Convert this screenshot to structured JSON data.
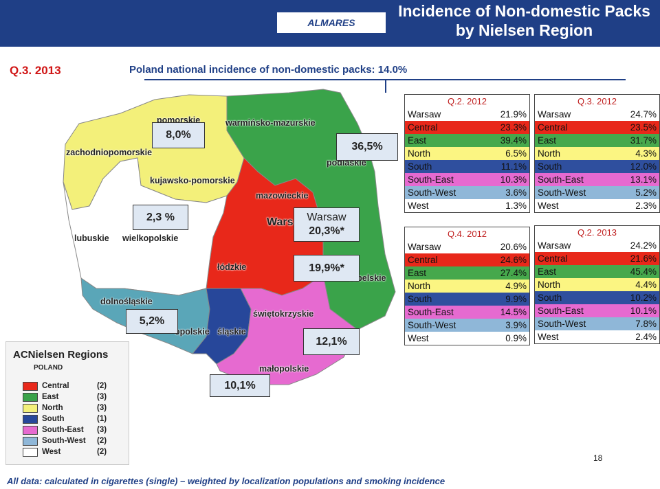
{
  "header": {
    "logo": "ALMARES",
    "title_line1": "Incidence of Non-domestic Packs",
    "title_line2": "by Nielsen Region"
  },
  "quarter_label": "Q.3. 2013",
  "subtitle": "Poland national incidence of non-domestic packs: 14.0%",
  "map": {
    "voivodeships": [
      "pomorskie",
      "warmińsko-mazurskie",
      "zachodniopomorskie",
      "podlaskie",
      "kujawsko-pomorskie",
      "mazowieckie",
      "lubuskie",
      "wielkopolskie",
      "Wars",
      "łódzkie",
      "lubelskie",
      "dolnośląskie",
      "świętokrzyskie",
      "opolskie",
      "śląskie",
      "małopolskie"
    ],
    "callouts": {
      "north": "8,0%",
      "east": "36,5%",
      "west": "2,3 %",
      "warsaw_line1": "Warsaw",
      "warsaw_line2": "20,3%*",
      "central": "19,9%*",
      "southwest": "5,2%",
      "southeast": "12,1%",
      "south": "10,1%"
    },
    "colors": {
      "north": "#f3f07a",
      "east": "#3aa34a",
      "west": "#ffffff",
      "central": "#e8281a",
      "southwest": "#5aa6b8",
      "south": "#27479a",
      "southeast": "#e66ad0"
    }
  },
  "legend": {
    "title": "ACNielsen Regions",
    "subtitle": "POLAND",
    "items": [
      {
        "label": "Central",
        "count": "(2)",
        "color": "#e8281a"
      },
      {
        "label": "East",
        "count": "(3)",
        "color": "#3aa34a"
      },
      {
        "label": "North",
        "count": "(3)",
        "color": "#f3f07a"
      },
      {
        "label": "South",
        "count": "(1)",
        "color": "#27479a"
      },
      {
        "label": "South-East",
        "count": "(3)",
        "color": "#e66ad0"
      },
      {
        "label": "South-West",
        "count": "(2)",
        "color": "#8fb7d8"
      },
      {
        "label": "West",
        "count": "(2)",
        "color": "#ffffff"
      }
    ]
  },
  "tables": [
    {
      "title": "Q.2. 2012",
      "rows": [
        {
          "region": "Warsaw",
          "value": "21.9%",
          "bg": "#ffffff",
          "fg": "#111111"
        },
        {
          "region": "Central",
          "value": "23.3%",
          "bg": "#e8281a",
          "fg": "#111111"
        },
        {
          "region": "East",
          "value": "39.4%",
          "bg": "#46a84c",
          "fg": "#111111"
        },
        {
          "region": "North",
          "value": "6.5%",
          "bg": "#fbf582",
          "fg": "#111111"
        },
        {
          "region": "South",
          "value": "11.1%",
          "bg": "#2f4f9e",
          "fg": "#111111"
        },
        {
          "region": "South-East",
          "value": "10.3%",
          "bg": "#e66ad0",
          "fg": "#111111"
        },
        {
          "region": "South-West",
          "value": "3.6%",
          "bg": "#8fb7d8",
          "fg": "#111111"
        },
        {
          "region": "West",
          "value": "1.3%",
          "bg": "#ffffff",
          "fg": "#111111"
        }
      ]
    },
    {
      "title": "Q.3. 2012",
      "rows": [
        {
          "region": "Warsaw",
          "value": "24.7%",
          "bg": "#ffffff",
          "fg": "#111111"
        },
        {
          "region": "Central",
          "value": "23.5%",
          "bg": "#e8281a",
          "fg": "#111111"
        },
        {
          "region": "East",
          "value": "31.7%",
          "bg": "#46a84c",
          "fg": "#111111"
        },
        {
          "region": "North",
          "value": "4.3%",
          "bg": "#fbf582",
          "fg": "#111111"
        },
        {
          "region": "South",
          "value": "12.0%",
          "bg": "#2f4f9e",
          "fg": "#111111"
        },
        {
          "region": "South-East",
          "value": "13.1%",
          "bg": "#e66ad0",
          "fg": "#111111"
        },
        {
          "region": "South-West",
          "value": "5.2%",
          "bg": "#8fb7d8",
          "fg": "#111111"
        },
        {
          "region": "West",
          "value": "2.3%",
          "bg": "#ffffff",
          "fg": "#111111"
        }
      ]
    },
    {
      "title": "Q.4. 2012",
      "rows": [
        {
          "region": "Warsaw",
          "value": "20.6%",
          "bg": "#ffffff",
          "fg": "#111111"
        },
        {
          "region": "Central",
          "value": "24.6%",
          "bg": "#e8281a",
          "fg": "#111111"
        },
        {
          "region": "East",
          "value": "27.4%",
          "bg": "#46a84c",
          "fg": "#111111"
        },
        {
          "region": "North",
          "value": "4.9%",
          "bg": "#fbf582",
          "fg": "#111111"
        },
        {
          "region": "South",
          "value": "9.9%",
          "bg": "#2f4f9e",
          "fg": "#111111"
        },
        {
          "region": "South-East",
          "value": "14.5%",
          "bg": "#e66ad0",
          "fg": "#111111"
        },
        {
          "region": "South-West",
          "value": "3.9%",
          "bg": "#8fb7d8",
          "fg": "#111111"
        },
        {
          "region": "West",
          "value": "0.9%",
          "bg": "#ffffff",
          "fg": "#111111"
        }
      ]
    },
    {
      "title": "Q.2. 2013",
      "rows": [
        {
          "region": "Warsaw",
          "value": "24.2%",
          "bg": "#ffffff",
          "fg": "#111111"
        },
        {
          "region": "Central",
          "value": "21.6%",
          "bg": "#e8281a",
          "fg": "#111111"
        },
        {
          "region": "East",
          "value": "45.4%",
          "bg": "#46a84c",
          "fg": "#111111"
        },
        {
          "region": "North",
          "value": "4.4%",
          "bg": "#fbf582",
          "fg": "#111111"
        },
        {
          "region": "South",
          "value": "10.2%",
          "bg": "#2f4f9e",
          "fg": "#111111"
        },
        {
          "region": "South-East",
          "value": "10.1%",
          "bg": "#e66ad0",
          "fg": "#111111"
        },
        {
          "region": "South-West",
          "value": "7.8%",
          "bg": "#8fb7d8",
          "fg": "#111111"
        },
        {
          "region": "West",
          "value": "2.4%",
          "bg": "#ffffff",
          "fg": "#111111"
        }
      ]
    }
  ],
  "page_number": "18",
  "footer": "All data: calculated in cigarettes (single) – weighted by localization populations and  smoking incidence"
}
